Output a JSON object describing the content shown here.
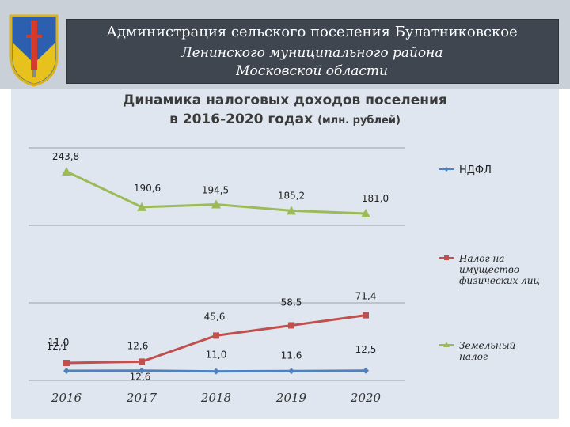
{
  "header": {
    "line1": "Администрация сельского поселения Булатниковское",
    "line2": "Ленинского муниципального района",
    "line3": "Московской области"
  },
  "chart_title": {
    "line1": "Динамика налоговых доходов поселения",
    "line2": "в 2016-2020 годах",
    "unit": "(млн. рублей)"
  },
  "colors": {
    "header_bg": "#c9d0d8",
    "banner": "#3f4650",
    "panel": "#dfe6ef",
    "ndfl": "#4f81bd",
    "property": "#c0504d",
    "land": "#9bbb59"
  },
  "chart_data": {
    "type": "line",
    "x": [
      "2016",
      "2017",
      "2018",
      "2019",
      "2020"
    ],
    "grid": true,
    "legend_position": "right",
    "series": [
      {
        "name": "НДФЛ",
        "color": "#4f81bd",
        "marker": "diamond",
        "values": [
          12.1,
          12.6,
          11.0,
          11.6,
          12.5
        ],
        "labels": [
          "12,1",
          "12,6",
          "11,0",
          "11,6",
          "12,5"
        ]
      },
      {
        "name": "Налог на имущество физических лиц",
        "color": "#c0504d",
        "marker": "square",
        "values": [
          11.0,
          12.6,
          45.6,
          58.5,
          71.4
        ],
        "labels": [
          "11,0",
          "12,6",
          "45,6",
          "58,5",
          "71,4"
        ]
      },
      {
        "name": "Земельный налог",
        "color": "#9bbb59",
        "marker": "triangle",
        "values": [
          243.8,
          190.6,
          194.5,
          185.2,
          181.0
        ],
        "labels": [
          "243,8",
          "190,6",
          "194,5",
          "185,2",
          "181,0"
        ]
      }
    ],
    "legend": [
      {
        "lines": [
          "НДФЛ"
        ]
      },
      {
        "lines": [
          "Налог на",
          "имущество",
          "физических лиц"
        ]
      },
      {
        "lines": [
          "Земельный",
          "налог"
        ]
      }
    ]
  }
}
